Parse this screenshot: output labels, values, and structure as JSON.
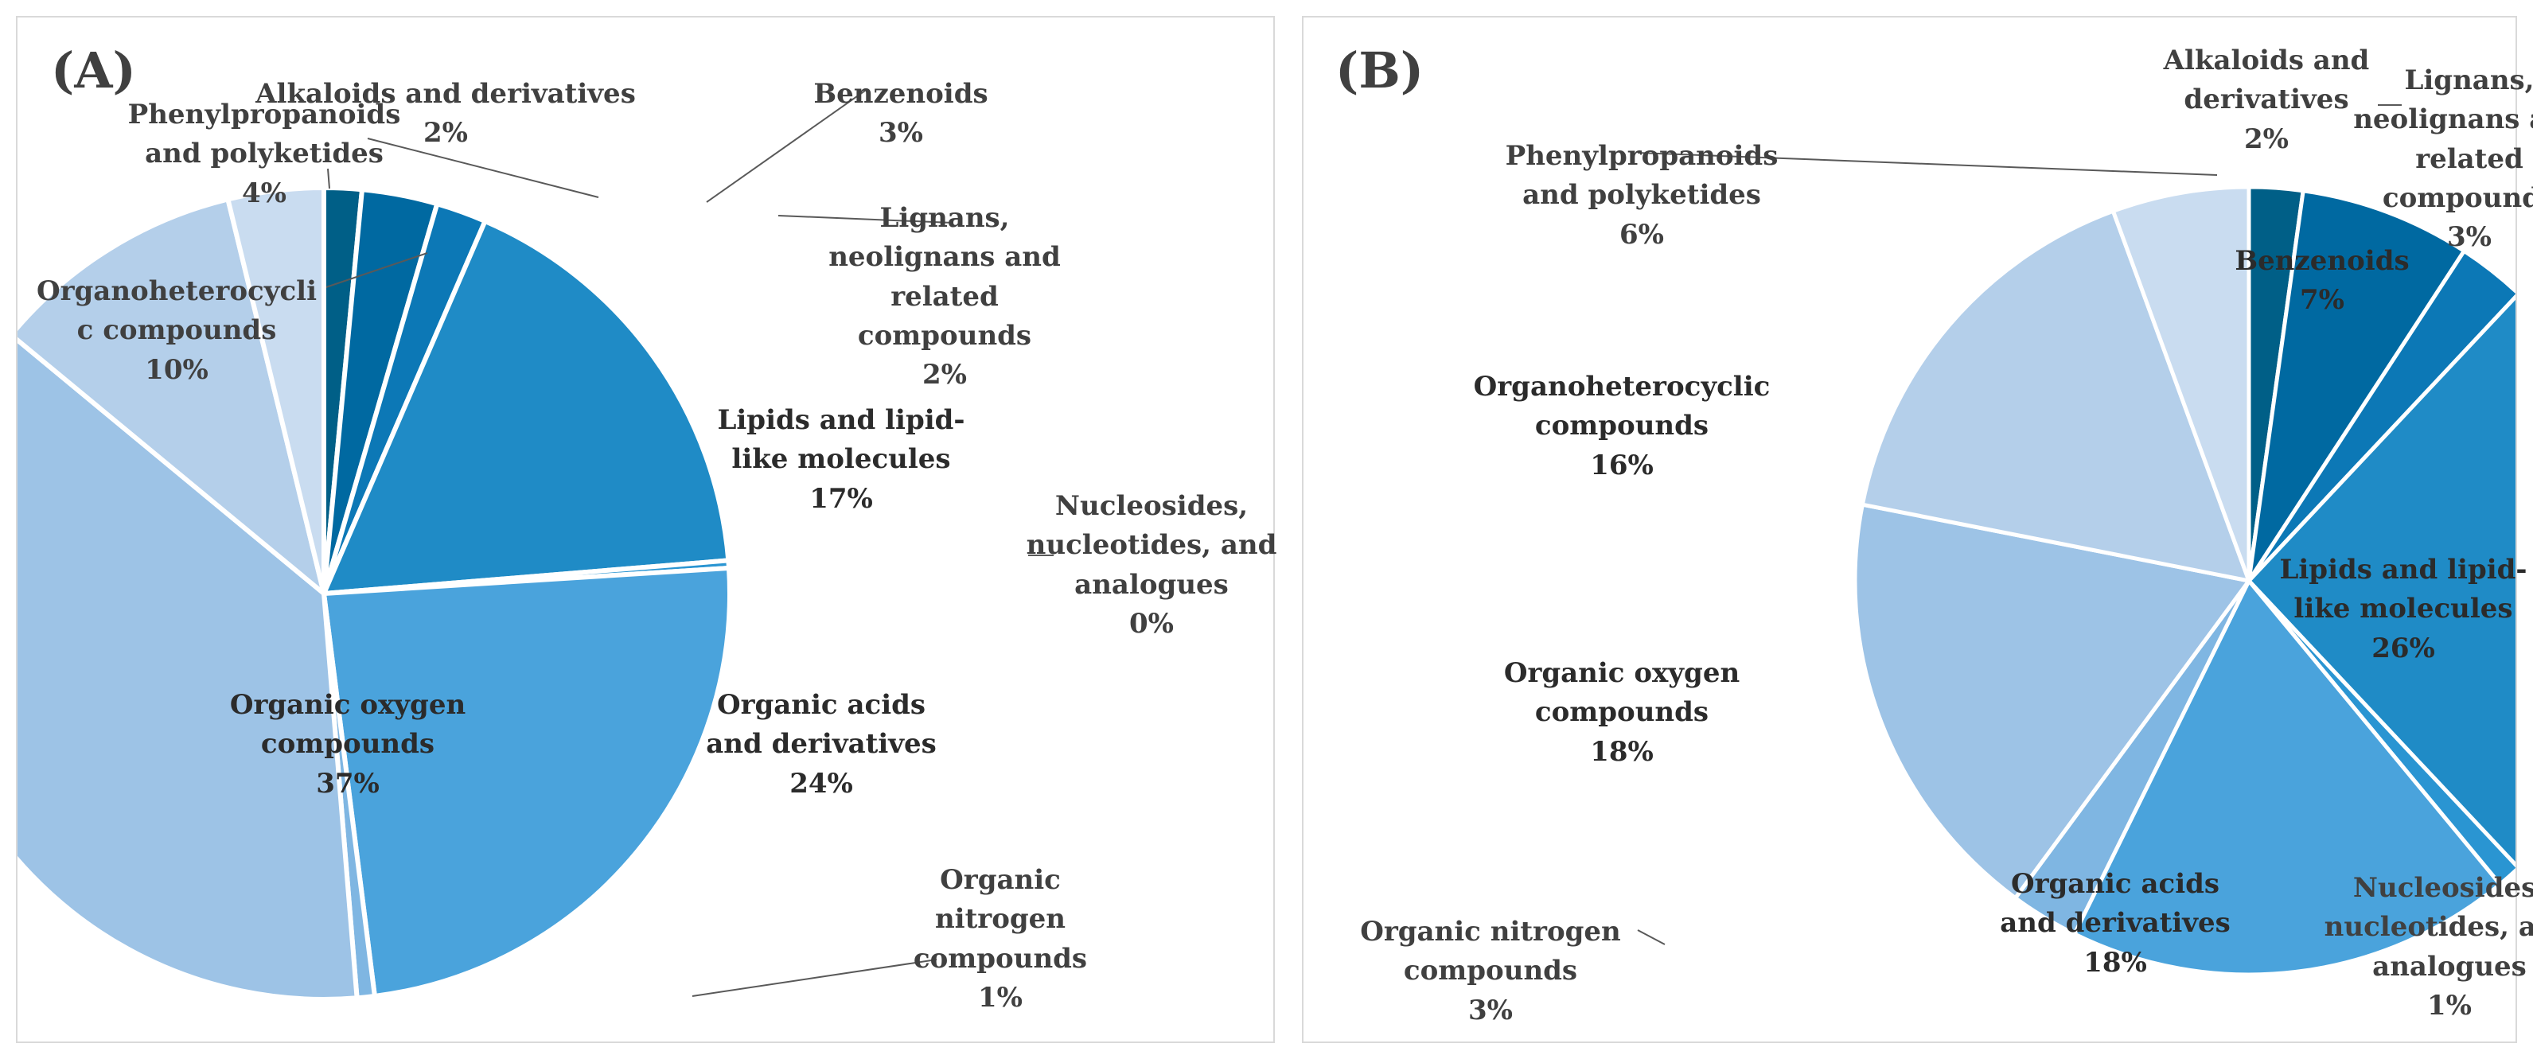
{
  "colors": {
    "Alkaloids and derivatives": "#005f87",
    "Benzenoids": "#0069a1",
    "Lignans, neolignans and related compounds": "#0c78b6",
    "Lipids and lipid-like molecules": "#1f8bc6",
    "Nucleosides, nucleotides, and analogues": "#2a95d2",
    "Organic acids and derivatives": "#4aa3dc",
    "Organic nitrogen compounds": "#7fb6e2",
    "Organic oxygen compounds": "#9dc3e6",
    "Organoheterocyclic compounds": "#b4cfea",
    "Phenylpropanoids and polyketides": "#c9dcf0",
    "separator": "#ffffff",
    "leader": "#595959",
    "text": "#404040"
  },
  "chart_data": [
    {
      "panel_label": "(A)",
      "type": "pie",
      "slices": [
        {
          "category": "Alkaloids and derivatives",
          "value": 1.5,
          "percent_label": "2%",
          "label_lines": [
            "Alkaloids and derivatives"
          ]
        },
        {
          "category": "Benzenoids",
          "value": 3.0,
          "percent_label": "3%",
          "label_lines": [
            "Benzenoids"
          ]
        },
        {
          "category": "Lignans, neolignans and related compounds",
          "value": 2.0,
          "percent_label": "2%",
          "label_lines": [
            "Lignans,",
            "neolignans and",
            "related",
            "compounds"
          ]
        },
        {
          "category": "Lipids and lipid-like molecules",
          "value": 17.2,
          "percent_label": "17%",
          "label_lines": [
            "Lipids and lipid-",
            "like molecules"
          ]
        },
        {
          "category": "Nucleosides, nucleotides, and analogues",
          "value": 0.3,
          "percent_label": "0%",
          "label_lines": [
            "Nucleosides,",
            "nucleotides, and",
            "analogues"
          ]
        },
        {
          "category": "Organic acids and derivatives",
          "value": 24.0,
          "percent_label": "24%",
          "label_lines": [
            "Organic acids",
            "and derivatives"
          ]
        },
        {
          "category": "Organic nitrogen compounds",
          "value": 0.7,
          "percent_label": "1%",
          "label_lines": [
            "Organic",
            "nitrogen",
            "compounds"
          ]
        },
        {
          "category": "Organic oxygen compounds",
          "value": 37.3,
          "percent_label": "37%",
          "label_lines": [
            "Organic oxygen",
            "compounds"
          ]
        },
        {
          "category": "Organoheterocyclic compounds",
          "value": 10.2,
          "percent_label": "10%",
          "label_lines": [
            "Organoheterocycli",
            "c compounds"
          ]
        },
        {
          "category": "Phenylpropanoids and polyketides",
          "value": 3.8,
          "percent_label": "4%",
          "label_lines": [
            "Phenylpropanoids",
            "and polyketides"
          ]
        }
      ]
    },
    {
      "panel_label": "(B)",
      "type": "pie",
      "slices": [
        {
          "category": "Alkaloids and derivatives",
          "value": 2.2,
          "percent_label": "2%",
          "label_lines": [
            "Alkaloids and",
            "derivatives"
          ]
        },
        {
          "category": "Benzenoids",
          "value": 7.0,
          "percent_label": "7%",
          "label_lines": [
            "Benzenoids"
          ]
        },
        {
          "category": "Lignans, neolignans and related compounds",
          "value": 2.8,
          "percent_label": "3%",
          "label_lines": [
            "Lignans,",
            "neolignans and",
            "related",
            "compounds"
          ]
        },
        {
          "category": "Lipids and lipid-like molecules",
          "value": 26.0,
          "percent_label": "26%",
          "label_lines": [
            "Lipids and lipid-",
            "like molecules"
          ]
        },
        {
          "category": "Nucleosides, nucleotides, and analogues",
          "value": 1.0,
          "percent_label": "1%",
          "label_lines": [
            "Nucleosides,",
            "nucleotides, and",
            "analogues"
          ]
        },
        {
          "category": "Organic acids and derivatives",
          "value": 18.3,
          "percent_label": "18%",
          "label_lines": [
            "Organic acids",
            "and derivatives"
          ]
        },
        {
          "category": "Organic nitrogen compounds",
          "value": 2.8,
          "percent_label": "3%",
          "label_lines": [
            "Organic nitrogen",
            "compounds"
          ]
        },
        {
          "category": "Organic oxygen compounds",
          "value": 18.0,
          "percent_label": "18%",
          "label_lines": [
            "Organic oxygen",
            "compounds"
          ]
        },
        {
          "category": "Organoheterocyclic compounds",
          "value": 16.3,
          "percent_label": "16%",
          "label_lines": [
            "Organoheterocyclic",
            "compounds"
          ]
        },
        {
          "category": "Phenylpropanoids and polyketides",
          "value": 5.6,
          "percent_label": "6%",
          "label_lines": [
            "Phenylpropanoids",
            "and polyketides"
          ]
        }
      ]
    }
  ]
}
